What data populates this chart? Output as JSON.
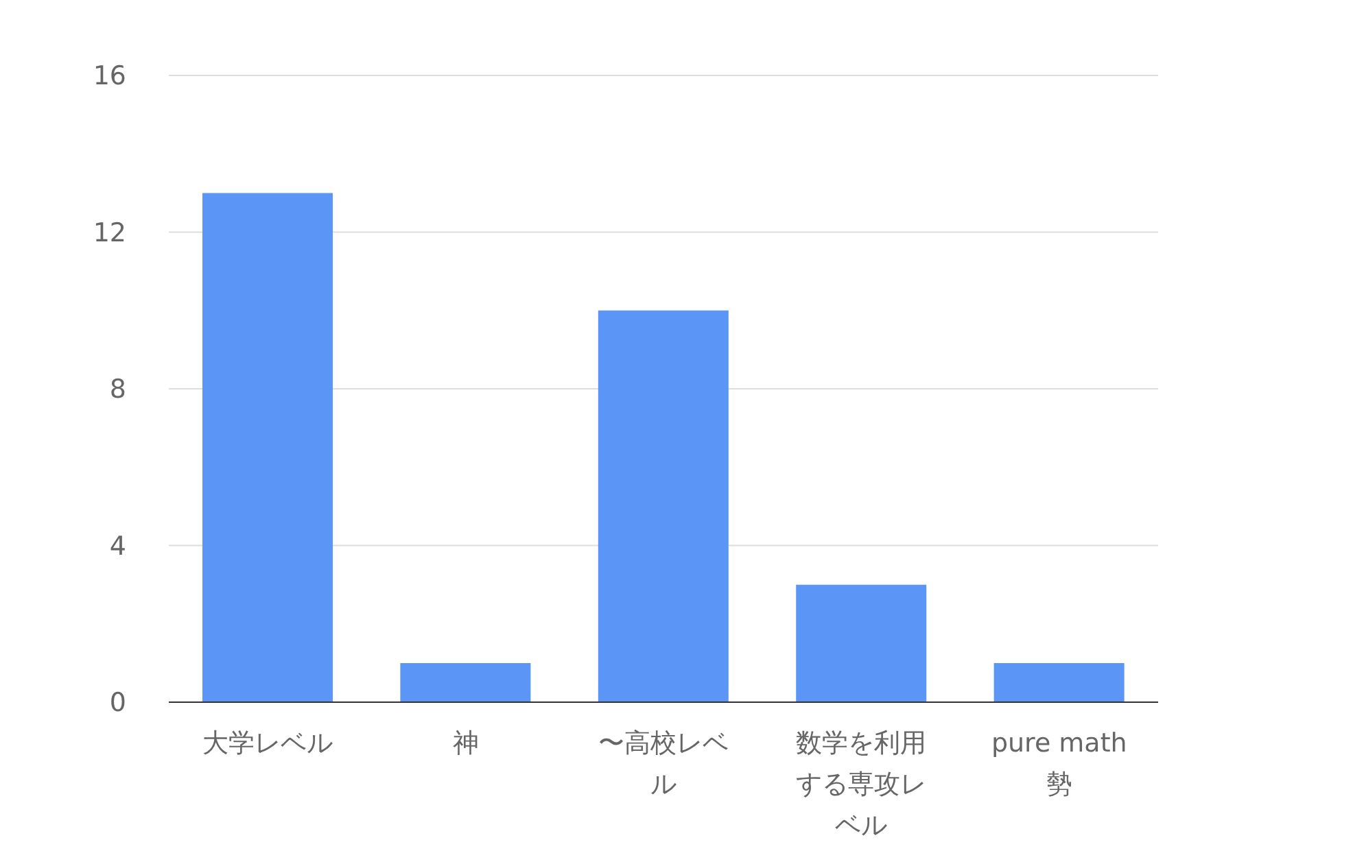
{
  "chart_data": {
    "type": "bar",
    "categories": [
      "大学レベル",
      "神",
      "〜高校レベル",
      "数学を利用する専攻レベル",
      "pure math 勢"
    ],
    "values": [
      13,
      1,
      10,
      3,
      1
    ],
    "color": "#5b95f5",
    "ylim": [
      0,
      16
    ],
    "yticks": [
      0,
      4,
      8,
      12,
      16
    ],
    "grid": "y"
  }
}
